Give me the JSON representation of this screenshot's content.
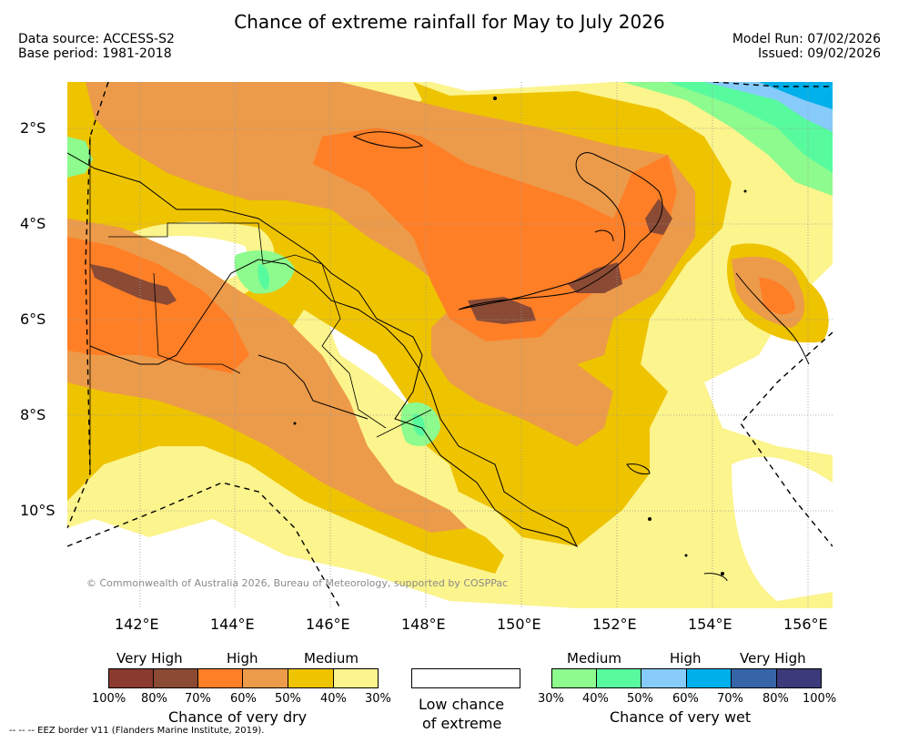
{
  "header": {
    "title": "Chance of extreme rainfall for May to July 2026",
    "data_source": "Data source: ACCESS-S2",
    "base_period": "Base period: 1981-2018",
    "model_run": "Model Run: 07/02/2026",
    "issued": "Issued: 09/02/2026"
  },
  "map": {
    "lat_labels": [
      "2°S",
      "4°S",
      "6°S",
      "8°S",
      "10°S"
    ],
    "lon_labels": [
      "142°E",
      "144°E",
      "146°E",
      "148°E",
      "150°E",
      "152°E",
      "154°E",
      "156°E"
    ],
    "credit": "© Commonwealth of Australia 2026, Bureau of Meteorology, supported by COSPPac"
  },
  "legend": {
    "dry": {
      "headers": [
        "Very High",
        "High",
        "Medium"
      ],
      "colors": [
        "#8b3a2f",
        "#8a4a34",
        "#ff7f27",
        "#ec9b4a",
        "#eec300",
        "#fcf48c"
      ],
      "ticks": [
        "100%",
        "80%",
        "70%",
        "60%",
        "50%",
        "40%",
        "30%"
      ],
      "title": "Chance of very dry"
    },
    "low": {
      "line1": "Low chance",
      "line2": "of extreme"
    },
    "wet": {
      "headers": [
        "Medium",
        "High",
        "Very High"
      ],
      "colors": [
        "#8dfb8d",
        "#58fa9e",
        "#86cbfa",
        "#00b0ea",
        "#3565a8",
        "#3c3a7a"
      ],
      "ticks": [
        "30%",
        "40%",
        "50%",
        "60%",
        "70%",
        "80%",
        "100%"
      ],
      "title": "Chance of very wet"
    },
    "eez_note": "--  --  -- EEZ border V11 (Flanders Marine Institute, 2019)."
  }
}
